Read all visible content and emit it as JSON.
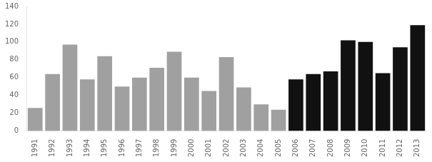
{
  "chart_data": {
    "type": "bar",
    "categories": [
      "1991",
      "1992",
      "1993",
      "1994",
      "1995",
      "1996",
      "1997",
      "1998",
      "1999",
      "2000",
      "2001",
      "2002",
      "2003",
      "2004",
      "2005",
      "2006",
      "2007",
      "2008",
      "2009",
      "2010",
      "2011",
      "2012",
      "2013"
    ],
    "values": [
      26,
      64,
      97,
      58,
      84,
      50,
      60,
      71,
      89,
      60,
      45,
      83,
      49,
      30,
      24,
      58,
      64,
      67,
      102,
      100,
      65,
      94,
      119
    ],
    "colors": [
      "#a0a0a0",
      "#a0a0a0",
      "#a0a0a0",
      "#a0a0a0",
      "#a0a0a0",
      "#a0a0a0",
      "#a0a0a0",
      "#a0a0a0",
      "#a0a0a0",
      "#a0a0a0",
      "#a0a0a0",
      "#a0a0a0",
      "#a0a0a0",
      "#a0a0a0",
      "#a0a0a0",
      "#111111",
      "#111111",
      "#111111",
      "#111111",
      "#111111",
      "#111111",
      "#111111",
      "#111111"
    ],
    "ylim": [
      0,
      140
    ],
    "yticks": [
      0,
      20,
      40,
      60,
      80,
      100,
      120,
      140
    ],
    "grid": false
  }
}
